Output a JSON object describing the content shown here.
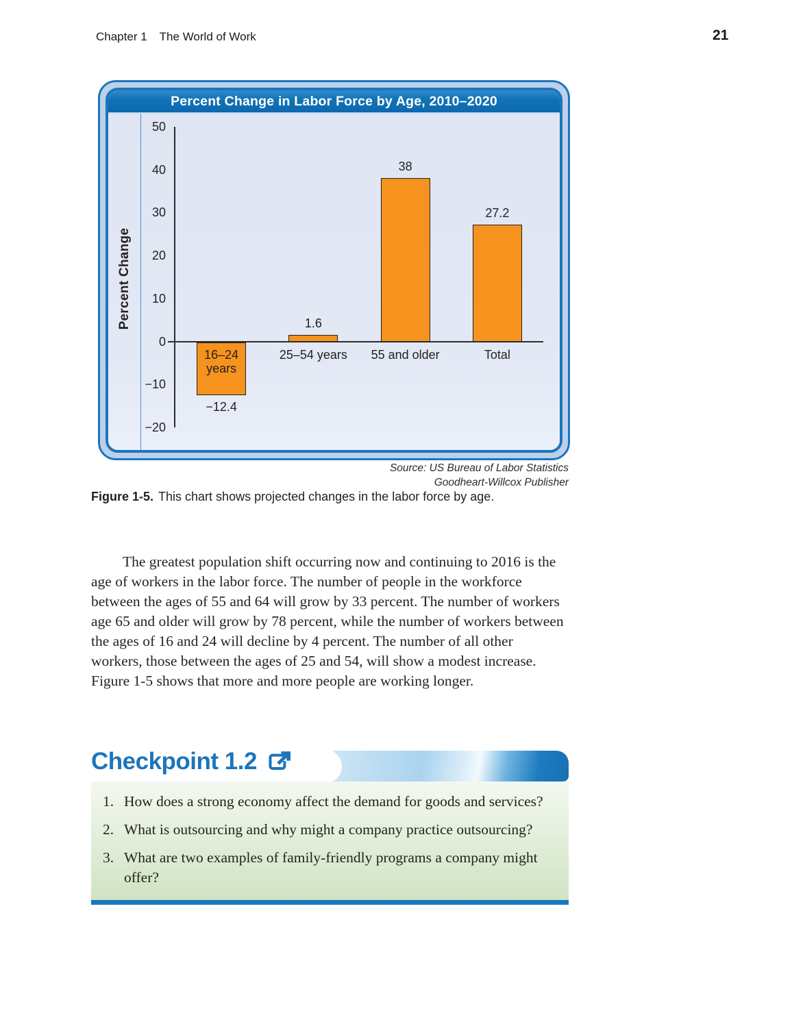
{
  "colors": {
    "accent_blue": "#1C75BC",
    "bar_orange": "#F6921E",
    "chart_bg": "#E0E6F3",
    "frame_mat": "#BCD0E9",
    "title_top": "#2F8CC9",
    "title_bottom": "#0D68AE",
    "rule_blue": "#1879BE",
    "green_top": "#F3F8F0",
    "green_bottom": "#CFE3C3",
    "banner_dark": "#1B6FB3",
    "banner_light": "#CFE7F6",
    "text_dark": "#231F20"
  },
  "header": {
    "chapter": "Chapter 1",
    "book_title": "The World of Work",
    "page_number": "21"
  },
  "chart_data": {
    "type": "bar",
    "title": "Percent Change in Labor Force by Age, 2010–2020",
    "categories": [
      "16–24 years",
      "25–54 years",
      "55 and older",
      "Total"
    ],
    "values": [
      -12.4,
      1.6,
      38,
      27.2
    ],
    "value_labels": [
      "−12.4",
      "1.6",
      "38",
      "27.2"
    ],
    "ylabel": "Percent Change",
    "ylim": [
      -20,
      50
    ],
    "yticks": [
      50,
      40,
      30,
      20,
      10,
      0,
      -10,
      -20
    ],
    "grid": false,
    "bar_color": "#F6921E"
  },
  "figure": {
    "source_lines": [
      "Source: US Bureau of Labor Statistics",
      "Goodheart-Willcox Publisher"
    ],
    "caption_label": "Figure 1-5.",
    "caption_text": "This chart shows projected changes in the labor force by age."
  },
  "body_paragraph": "The greatest population shift occurring now and continuing to 2016 is the age of workers in the labor force. The number of people in the workforce between the ages of 55 and 64 will grow by 33 percent. The number of workers age 65 and older will grow by 78 percent, while the number of workers between the ages of 16 and 24 will decline by 4 percent. The number of all other workers, those between the ages of 25 and 54, will show a modest increase. Figure 1-5 shows that more and more people are working longer.",
  "checkpoint": {
    "title": "Checkpoint 1.2",
    "questions": [
      "How does a strong economy affect the demand for goods and services?",
      "What is outsourcing and why might a company practice outsourcing?",
      "What are two examples of family-friendly programs a company might offer?"
    ]
  }
}
